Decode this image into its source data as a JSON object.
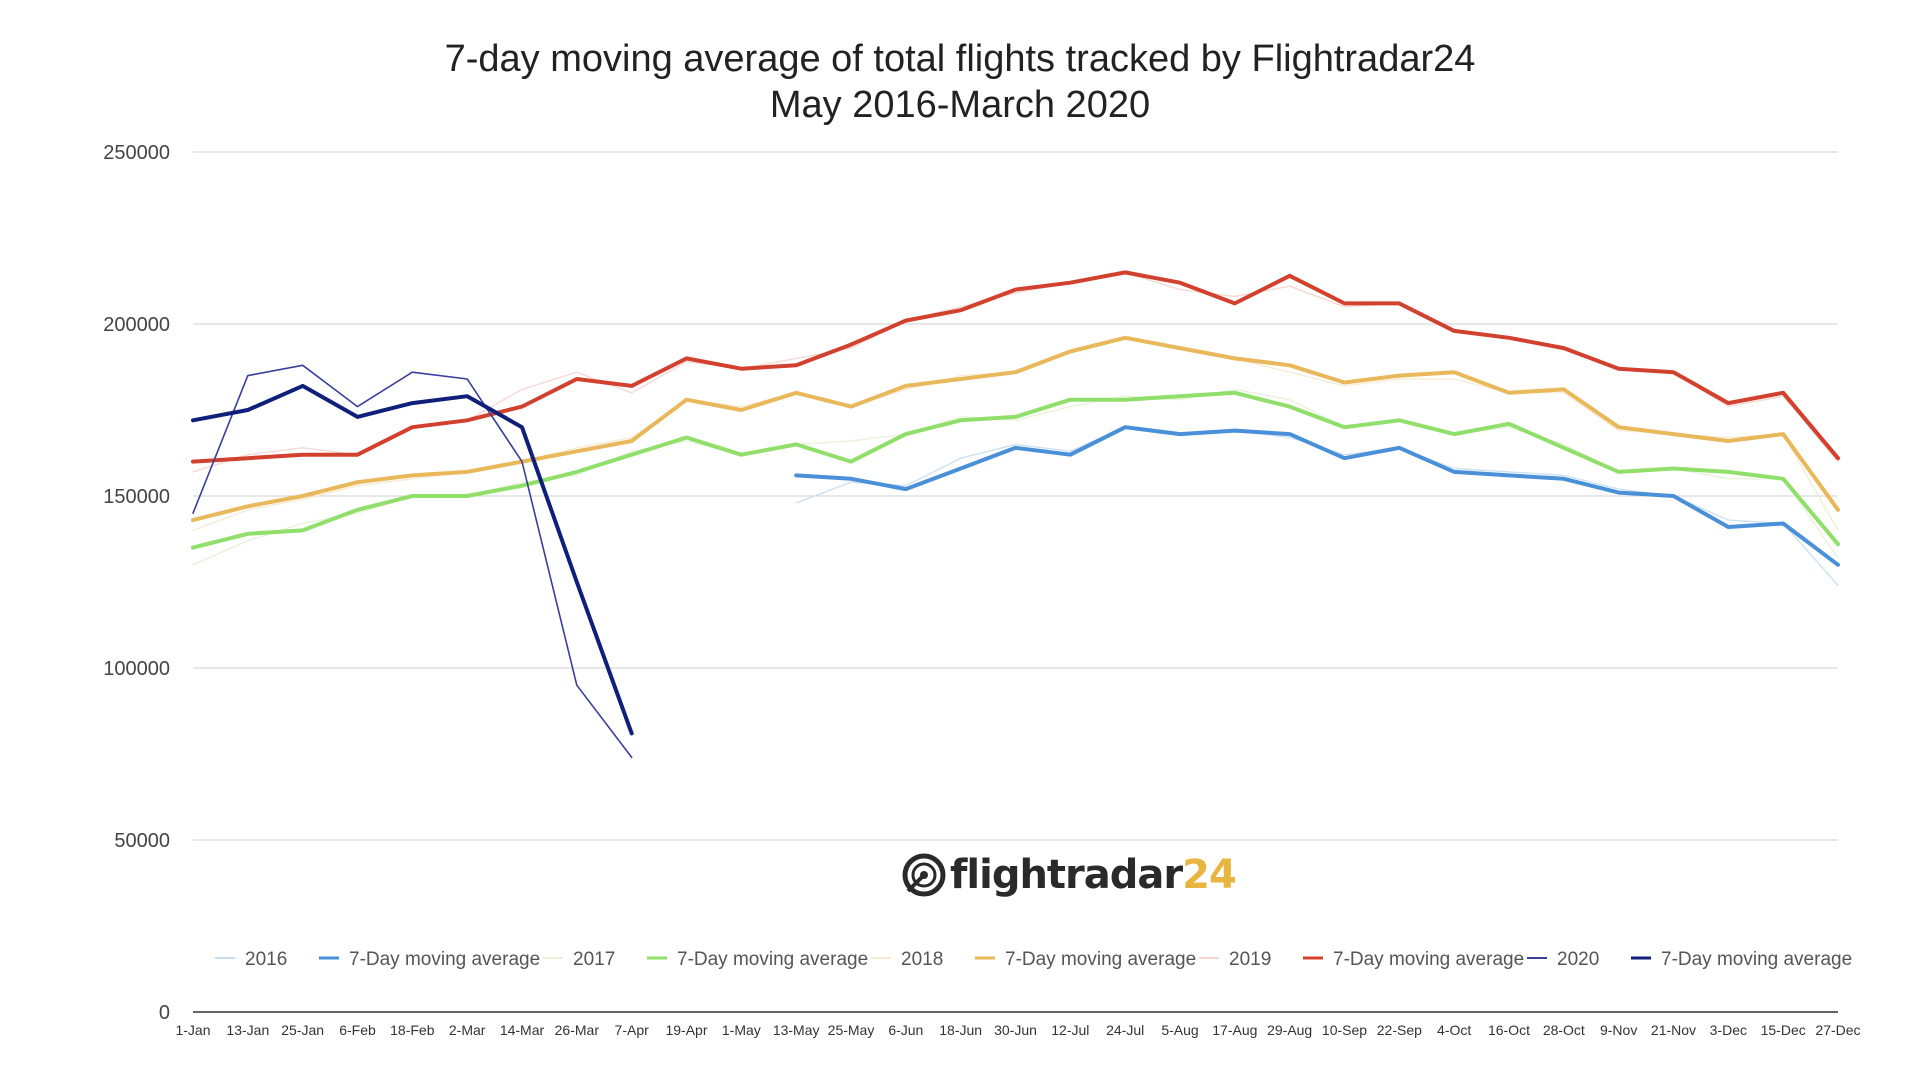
{
  "chart_data": {
    "type": "line",
    "title": "7-day moving average of total flights tracked by Flightradar24",
    "subtitle": "May 2016-March 2020",
    "xlabel": "",
    "ylabel": "",
    "ylim": [
      0,
      250000
    ],
    "yticks": [
      0,
      50000,
      100000,
      150000,
      200000,
      250000
    ],
    "grid": true,
    "legend_position": "bottom",
    "categories": [
      "1-Jan",
      "13-Jan",
      "25-Jan",
      "6-Feb",
      "18-Feb",
      "2-Mar",
      "14-Mar",
      "26-Mar",
      "7-Apr",
      "19-Apr",
      "1-May",
      "13-May",
      "25-May",
      "6-Jun",
      "18-Jun",
      "30-Jun",
      "12-Jul",
      "24-Jul",
      "5-Aug",
      "17-Aug",
      "29-Aug",
      "10-Sep",
      "22-Sep",
      "4-Oct",
      "16-Oct",
      "28-Oct",
      "9-Nov",
      "21-Nov",
      "3-Dec",
      "15-Dec",
      "27-Dec"
    ],
    "series": [
      {
        "name": "2016",
        "kind": "daily",
        "color": "#c7dff0",
        "values": [
          null,
          null,
          null,
          null,
          null,
          null,
          null,
          null,
          null,
          null,
          null,
          148000,
          154000,
          153000,
          161000,
          165000,
          163000,
          170000,
          168000,
          169000,
          167000,
          162000,
          164000,
          158000,
          157000,
          156000,
          152000,
          150000,
          143000,
          142000,
          124000
        ]
      },
      {
        "name": "7-Day moving average",
        "kind": "ma",
        "color": "#4a90d9",
        "values": [
          null,
          null,
          null,
          null,
          null,
          null,
          null,
          null,
          null,
          null,
          null,
          156000,
          155000,
          152000,
          158000,
          164000,
          162000,
          170000,
          168000,
          169000,
          168000,
          161000,
          164000,
          157000,
          156000,
          155000,
          151000,
          150000,
          141000,
          142000,
          130000
        ]
      },
      {
        "name": "2017",
        "kind": "daily",
        "color": "#e6f2d8",
        "values": [
          130000,
          137000,
          142000,
          145000,
          150000,
          150000,
          154000,
          156000,
          163000,
          166000,
          162000,
          165000,
          166000,
          168000,
          173000,
          172000,
          176000,
          179000,
          178000,
          181000,
          178000,
          170000,
          172000,
          168000,
          170000,
          165000,
          157000,
          158000,
          155000,
          155000,
          132000
        ]
      },
      {
        "name": "7-Day moving average",
        "kind": "ma",
        "color": "#8fdf6a",
        "values": [
          135000,
          139000,
          140000,
          146000,
          150000,
          150000,
          153000,
          157000,
          162000,
          167000,
          162000,
          165000,
          160000,
          168000,
          172000,
          173000,
          178000,
          178000,
          179000,
          180000,
          176000,
          170000,
          172000,
          168000,
          171000,
          164000,
          157000,
          158000,
          157000,
          155000,
          136000
        ]
      },
      {
        "name": "2018",
        "kind": "daily",
        "color": "#f5ead2",
        "values": [
          140000,
          146000,
          149000,
          153000,
          155000,
          157000,
          160000,
          164000,
          167000,
          178000,
          176000,
          180000,
          176000,
          181000,
          185000,
          186000,
          192000,
          196000,
          193000,
          190000,
          186000,
          182000,
          184000,
          184000,
          180000,
          180000,
          169000,
          168000,
          167000,
          168000,
          140000
        ]
      },
      {
        "name": "7-Day moving average",
        "kind": "ma",
        "color": "#e8b85a",
        "values": [
          143000,
          147000,
          150000,
          154000,
          156000,
          157000,
          160000,
          163000,
          166000,
          178000,
          175000,
          180000,
          176000,
          182000,
          184000,
          186000,
          192000,
          196000,
          193000,
          190000,
          188000,
          183000,
          185000,
          186000,
          180000,
          181000,
          170000,
          168000,
          166000,
          168000,
          146000
        ]
      },
      {
        "name": "2019",
        "kind": "daily",
        "color": "#f5d5d0",
        "values": [
          157000,
          162000,
          164000,
          162000,
          170000,
          172000,
          181000,
          186000,
          180000,
          189000,
          187000,
          190000,
          193000,
          201000,
          205000,
          209000,
          212000,
          215000,
          210000,
          208000,
          211000,
          205000,
          206000,
          198000,
          196000,
          193000,
          187000,
          186000,
          176000,
          179000,
          160000
        ]
      },
      {
        "name": "7-Day moving average",
        "kind": "ma",
        "color": "#d2402e",
        "values": [
          160000,
          161000,
          162000,
          162000,
          170000,
          172000,
          176000,
          184000,
          182000,
          190000,
          187000,
          188000,
          194000,
          201000,
          204000,
          210000,
          212000,
          215000,
          212000,
          206000,
          214000,
          206000,
          206000,
          198000,
          196000,
          193000,
          187000,
          186000,
          177000,
          180000,
          161000
        ]
      },
      {
        "name": "2020",
        "kind": "daily",
        "color": "#3a3f9e",
        "values": [
          145000,
          185000,
          188000,
          176000,
          186000,
          184000,
          160000,
          95000,
          74000,
          null,
          null,
          null,
          null,
          null,
          null,
          null,
          null,
          null,
          null,
          null,
          null,
          null,
          null,
          null,
          null,
          null,
          null,
          null,
          null,
          null,
          null
        ]
      },
      {
        "name": "7-Day moving average",
        "kind": "ma",
        "color": "#0f1f7a",
        "values": [
          172000,
          175000,
          182000,
          173000,
          177000,
          179000,
          170000,
          125000,
          81000,
          null,
          null,
          null,
          null,
          null,
          null,
          null,
          null,
          null,
          null,
          null,
          null,
          null,
          null,
          null,
          null,
          null,
          null,
          null,
          null,
          null,
          null
        ]
      }
    ]
  },
  "logo": {
    "name": "flightradar24-logo",
    "text_main": "flightradar",
    "text_accent": "24",
    "icon": "radar-icon"
  }
}
